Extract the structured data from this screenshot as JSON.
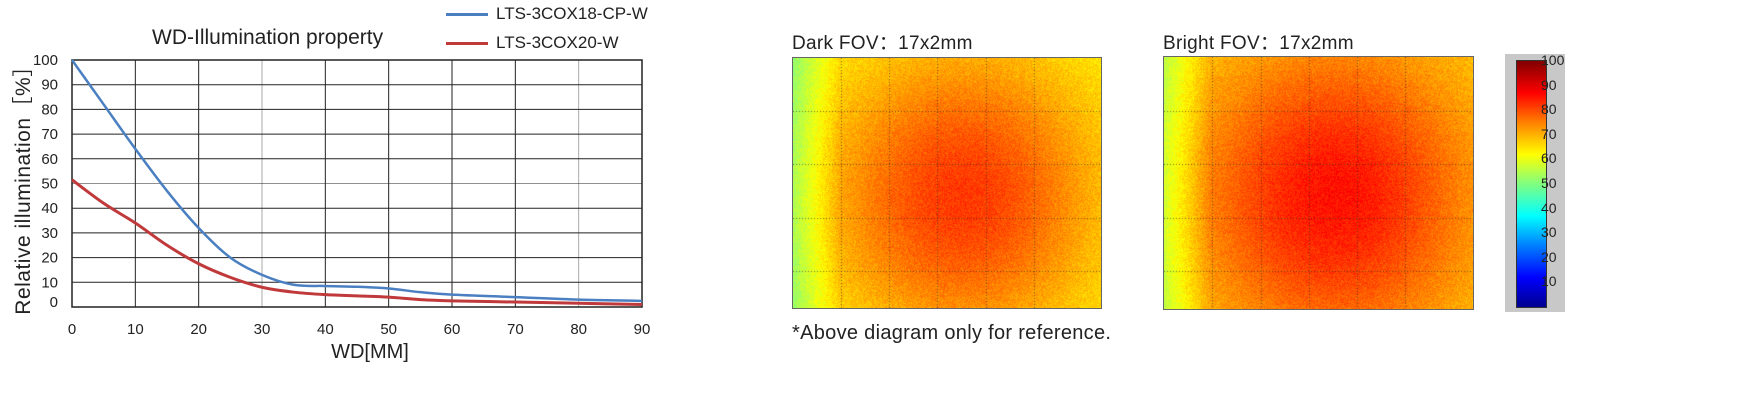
{
  "chart_data": [
    {
      "type": "line",
      "title": "WD-Illumination property",
      "xlabel": "WD[MM]",
      "ylabel": "Relative illumination［%］",
      "xlim": [
        0,
        90
      ],
      "ylim": [
        0,
        100
      ],
      "x_ticks": [
        "0",
        "10",
        "20",
        "30",
        "40",
        "50",
        "60",
        "70",
        "80",
        "90"
      ],
      "y_ticks": [
        "100",
        "90",
        "80",
        "70",
        "60",
        "50",
        "40",
        "30",
        "20",
        "10",
        "0"
      ],
      "grid": true,
      "legend_position": "top-right",
      "series": [
        {
          "name": "LTS-3COX18-CP-W",
          "color": "#4a7fc1",
          "x": [
            0,
            5,
            10,
            15,
            20,
            25,
            30,
            35,
            40,
            45,
            50,
            55,
            60,
            70,
            80,
            90
          ],
          "y": [
            100,
            82,
            64,
            47,
            32,
            20,
            13,
            9,
            8.5,
            8.2,
            7.5,
            6,
            5,
            4,
            3,
            2.5
          ]
        },
        {
          "name": "LTS-3COX20-W",
          "color": "#c0393b",
          "x": [
            0,
            5,
            10,
            15,
            20,
            25,
            30,
            35,
            40,
            45,
            50,
            55,
            60,
            70,
            80,
            90
          ],
          "y": [
            51.5,
            42,
            34,
            25,
            17.5,
            12,
            8,
            6,
            5,
            4.5,
            4,
            3,
            2.5,
            2,
            1.5,
            1
          ]
        }
      ]
    },
    {
      "type": "heatmap",
      "title": "Dark   FOV：17x2mm",
      "colorbar_ticks": [
        "100",
        "90",
        "80",
        "70",
        "60",
        "50",
        "40",
        "30",
        "20",
        "10"
      ],
      "colorbar_range": [
        0,
        100
      ],
      "colormap": "jet"
    },
    {
      "type": "heatmap",
      "title": "Bright   FOV：17x2mm",
      "colorbar_range": [
        0,
        100
      ],
      "colormap": "jet"
    }
  ],
  "note": "*Above diagram only for reference."
}
